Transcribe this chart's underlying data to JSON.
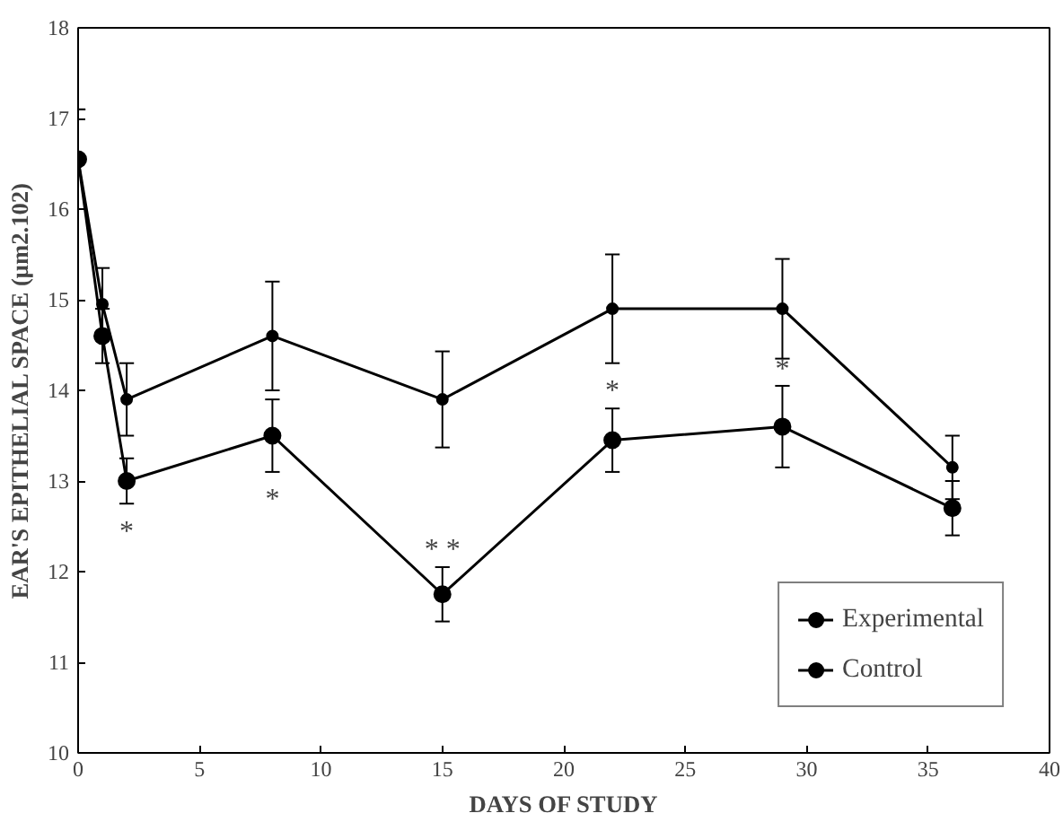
{
  "chart_data": {
    "type": "line",
    "xlabel": "DAYS OF STUDY",
    "ylabel": "EAR'S EPITHELIAL SPACE (μm2.102)",
    "x": [
      0,
      1,
      2,
      8,
      15,
      22,
      29,
      36
    ],
    "series": [
      {
        "name": "Experimental",
        "color": "#000000",
        "values": [
          16.55,
          14.6,
          13.0,
          13.5,
          11.75,
          13.45,
          13.6,
          12.7
        ],
        "errors": [
          0.55,
          0.3,
          0.25,
          0.4,
          0.3,
          0.35,
          0.45,
          0.3
        ]
      },
      {
        "name": "Control",
        "color": "#000000",
        "values": [
          16.55,
          14.95,
          13.9,
          14.6,
          13.9,
          14.9,
          14.9,
          13.15
        ],
        "errors": [
          0.55,
          0.4,
          0.4,
          0.6,
          0.53,
          0.6,
          0.55,
          0.35
        ]
      }
    ],
    "annotations": [
      {
        "text": "*",
        "x": 2,
        "y": 13.0
      },
      {
        "text": "*",
        "x": 8,
        "y": 13.5
      },
      {
        "text": "* *",
        "x": 15,
        "y": 11.75
      },
      {
        "text": "*",
        "x": 22,
        "y": 13.45
      },
      {
        "text": "*",
        "x": 29,
        "y": 13.6
      }
    ],
    "xlim": [
      0,
      40
    ],
    "xticks": [
      0,
      5,
      10,
      15,
      20,
      25,
      30,
      35,
      40
    ],
    "ylim": [
      10,
      18
    ],
    "yticks": [
      10,
      11,
      12,
      13,
      14,
      15,
      16,
      17,
      18
    ],
    "marker": "circle",
    "line_style": "solid",
    "legend": "bottom right",
    "grid": false
  }
}
